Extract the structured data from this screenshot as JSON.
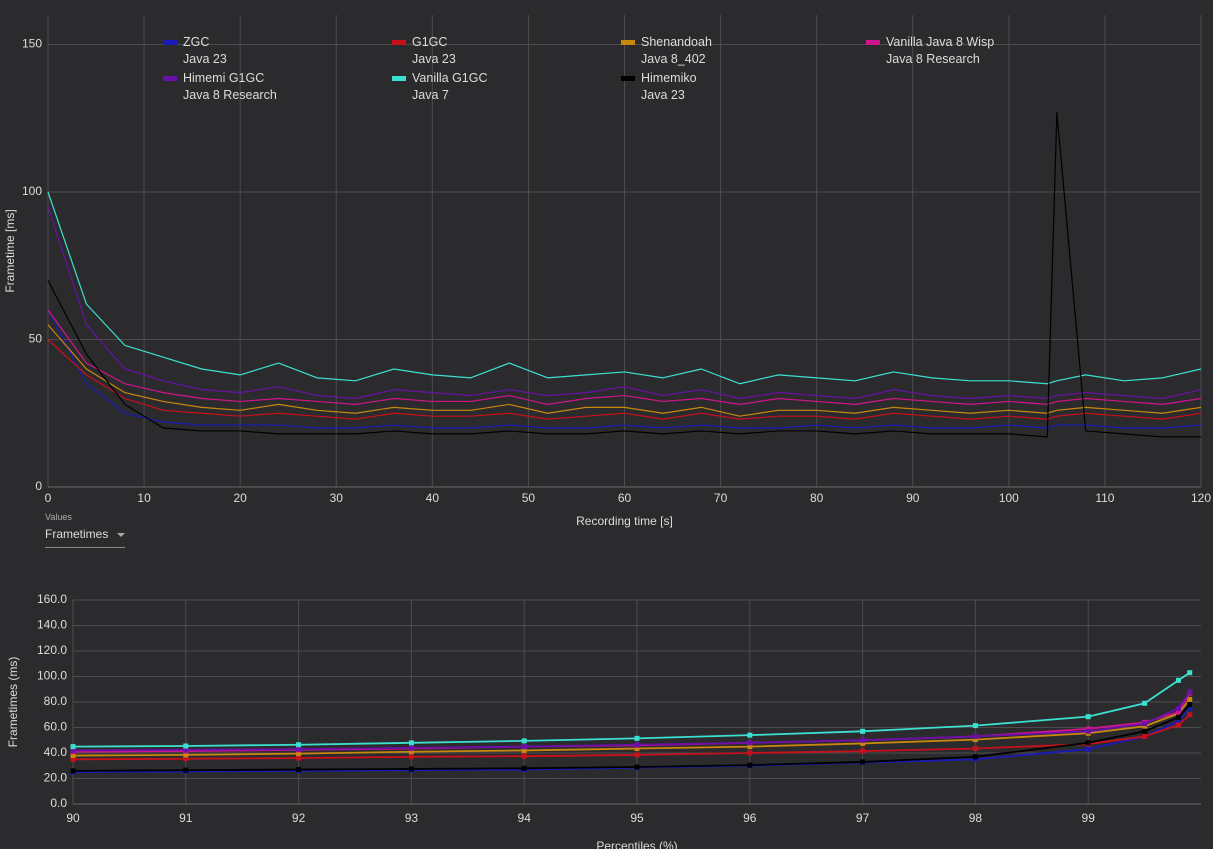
{
  "controls": {
    "label": "Values",
    "selected": "Frametimes"
  },
  "chart_data": [
    {
      "type": "line",
      "x_label": "Recording time [s]",
      "y_label": "Frametime [ms]",
      "xlim": [
        0,
        120
      ],
      "xticks": [
        0,
        10,
        20,
        30,
        40,
        50,
        60,
        70,
        80,
        90,
        100,
        110,
        120
      ],
      "ylim": [
        0,
        160
      ],
      "yticks": [
        0,
        50,
        100,
        150
      ],
      "grid": true,
      "legend": "top",
      "markers": false,
      "x": [
        0,
        4,
        8,
        12,
        16,
        20,
        24,
        28,
        32,
        36,
        40,
        44,
        48,
        52,
        56,
        60,
        64,
        68,
        72,
        76,
        80,
        84,
        88,
        92,
        96,
        100,
        104,
        105,
        108,
        112,
        116,
        120
      ],
      "series": [
        {
          "name": "ZGC\nJava 23",
          "color": "#1a1ab8",
          "values": [
            60,
            35,
            25,
            22,
            21,
            21,
            21,
            20,
            20,
            21,
            20,
            20,
            21,
            20,
            20,
            21,
            20,
            21,
            20,
            20,
            21,
            20,
            21,
            20,
            20,
            21,
            20,
            21,
            21,
            20,
            20,
            21
          ]
        },
        {
          "name": "G1GC\nJava 23",
          "color": "#c8101c",
          "values": [
            50,
            38,
            30,
            26,
            25,
            24,
            25,
            24,
            23,
            25,
            24,
            24,
            25,
            23,
            24,
            25,
            23,
            25,
            23,
            24,
            24,
            23,
            25,
            24,
            23,
            24,
            23,
            24,
            25,
            24,
            23,
            25
          ]
        },
        {
          "name": "Shenandoah\nJava 8_402",
          "color": "#c8880e",
          "values": [
            55,
            40,
            32,
            29,
            27,
            26,
            28,
            26,
            25,
            27,
            26,
            26,
            28,
            25,
            27,
            27,
            25,
            27,
            24,
            26,
            26,
            25,
            27,
            26,
            25,
            26,
            25,
            26,
            27,
            26,
            25,
            27
          ]
        },
        {
          "name": "Vanilla Java 8 Wisp\nJava 8 Research",
          "color": "#d0148c",
          "values": [
            60,
            42,
            35,
            32,
            30,
            29,
            30,
            29,
            28,
            30,
            29,
            29,
            31,
            28,
            30,
            31,
            29,
            30,
            28,
            30,
            29,
            28,
            30,
            29,
            28,
            29,
            28,
            29,
            30,
            29,
            28,
            30
          ]
        },
        {
          "name": "Himemi G1GC\nJava 8 Research",
          "color": "#6a10a8",
          "values": [
            95,
            55,
            40,
            36,
            33,
            32,
            34,
            31,
            30,
            33,
            32,
            31,
            33,
            31,
            32,
            34,
            31,
            33,
            30,
            32,
            31,
            30,
            33,
            31,
            30,
            31,
            30,
            31,
            32,
            31,
            30,
            33
          ]
        },
        {
          "name": "Vanilla G1GC\nJava 7",
          "color": "#3ce0d0",
          "values": [
            100,
            62,
            48,
            44,
            40,
            38,
            42,
            37,
            36,
            40,
            38,
            37,
            42,
            37,
            38,
            39,
            37,
            40,
            35,
            38,
            37,
            36,
            39,
            37,
            36,
            36,
            35,
            36,
            38,
            36,
            37,
            40
          ]
        },
        {
          "name": "Himemiko\nJava 23",
          "color": "#000000",
          "values": [
            70,
            45,
            28,
            20,
            19,
            19,
            18,
            18,
            18,
            19,
            18,
            18,
            19,
            18,
            18,
            19,
            18,
            19,
            18,
            19,
            19,
            18,
            19,
            18,
            18,
            18,
            17,
            127,
            19,
            18,
            17,
            17
          ]
        }
      ]
    },
    {
      "type": "line",
      "x_label": "Percentiles (%)",
      "y_label": "Frametimes (ms)",
      "xlim": [
        90,
        100
      ],
      "xticks": [
        90,
        91,
        92,
        93,
        94,
        95,
        96,
        97,
        98,
        99
      ],
      "ylim": [
        0,
        160
      ],
      "yticks": [
        {
          "value": 0,
          "label": "0.0"
        },
        {
          "value": 20,
          "label": "20.0"
        },
        {
          "value": 40,
          "label": "40.0"
        },
        {
          "value": 60,
          "label": "60.0"
        },
        {
          "value": 80,
          "label": "80.0"
        },
        {
          "value": 100,
          "label": "100.0"
        },
        {
          "value": 120,
          "label": "120.0"
        },
        {
          "value": 140,
          "label": "140.0"
        },
        {
          "value": 160,
          "label": "160.0"
        }
      ],
      "grid": true,
      "markers": true,
      "x": [
        90,
        91,
        92,
        93,
        94,
        95,
        96,
        97,
        98,
        99,
        99.5,
        99.8,
        99.9
      ],
      "series": [
        {
          "color": "#1a1ab8",
          "values": [
            25,
            25.5,
            26,
            26.5,
            27,
            28.5,
            30,
            32.5,
            35,
            43,
            53,
            65,
            75
          ]
        },
        {
          "color": "#c8101c",
          "values": [
            35,
            35.5,
            36,
            37,
            37.5,
            38.5,
            40,
            41.5,
            43.5,
            47,
            53,
            62,
            70
          ]
        },
        {
          "color": "#c8880e",
          "values": [
            38,
            38.5,
            39.5,
            41,
            42,
            43.5,
            45,
            47.5,
            50.5,
            55.5,
            61,
            71,
            82
          ]
        },
        {
          "color": "#d0148c",
          "values": [
            41,
            41.5,
            42.5,
            43.5,
            45,
            46,
            48,
            50,
            53,
            59,
            64,
            72,
            87
          ]
        },
        {
          "color": "#6a10a8",
          "values": [
            42,
            42.5,
            43,
            44,
            45,
            46.5,
            48,
            50,
            53,
            57,
            63,
            75,
            88
          ]
        },
        {
          "color": "#3ce0d0",
          "values": [
            45,
            45.5,
            46.5,
            48,
            49.5,
            51.5,
            54,
            57,
            61.5,
            68.5,
            79,
            97,
            103
          ]
        },
        {
          "color": "#000000",
          "values": [
            26,
            26.5,
            27,
            27.5,
            28,
            29,
            30.5,
            33,
            37,
            48,
            57,
            68,
            78
          ]
        }
      ]
    }
  ]
}
